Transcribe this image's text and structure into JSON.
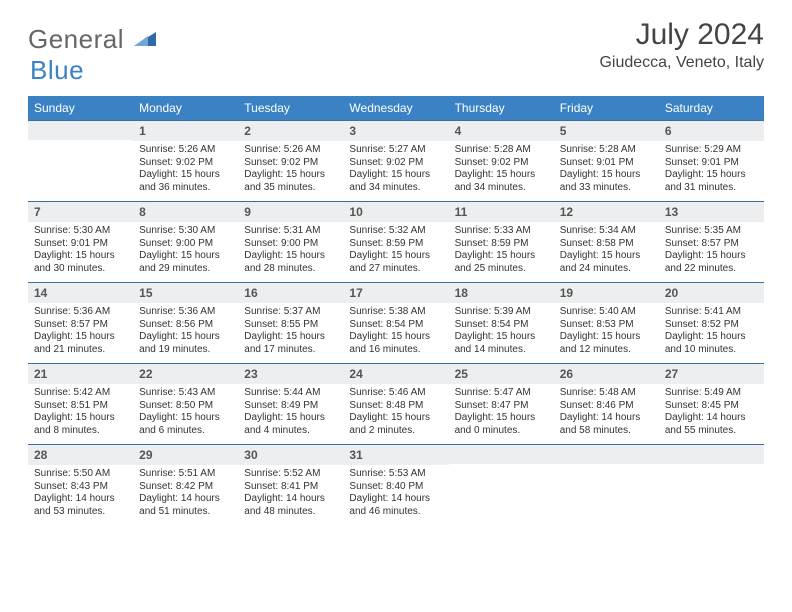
{
  "brand": {
    "general": "General",
    "blue": "Blue"
  },
  "title": "July 2024",
  "location": "Giudecca, Veneto, Italy",
  "colors": {
    "header_bg": "#3b82c4",
    "strip_bg": "#eceeef",
    "rule": "#3b6ea0"
  },
  "day_headers": [
    "Sunday",
    "Monday",
    "Tuesday",
    "Wednesday",
    "Thursday",
    "Friday",
    "Saturday"
  ],
  "weeks": [
    [
      null,
      {
        "n": "1",
        "sr": "5:26 AM",
        "ss": "9:02 PM",
        "dl": "15 hours and 36 minutes."
      },
      {
        "n": "2",
        "sr": "5:26 AM",
        "ss": "9:02 PM",
        "dl": "15 hours and 35 minutes."
      },
      {
        "n": "3",
        "sr": "5:27 AM",
        "ss": "9:02 PM",
        "dl": "15 hours and 34 minutes."
      },
      {
        "n": "4",
        "sr": "5:28 AM",
        "ss": "9:02 PM",
        "dl": "15 hours and 34 minutes."
      },
      {
        "n": "5",
        "sr": "5:28 AM",
        "ss": "9:01 PM",
        "dl": "15 hours and 33 minutes."
      },
      {
        "n": "6",
        "sr": "5:29 AM",
        "ss": "9:01 PM",
        "dl": "15 hours and 31 minutes."
      }
    ],
    [
      {
        "n": "7",
        "sr": "5:30 AM",
        "ss": "9:01 PM",
        "dl": "15 hours and 30 minutes."
      },
      {
        "n": "8",
        "sr": "5:30 AM",
        "ss": "9:00 PM",
        "dl": "15 hours and 29 minutes."
      },
      {
        "n": "9",
        "sr": "5:31 AM",
        "ss": "9:00 PM",
        "dl": "15 hours and 28 minutes."
      },
      {
        "n": "10",
        "sr": "5:32 AM",
        "ss": "8:59 PM",
        "dl": "15 hours and 27 minutes."
      },
      {
        "n": "11",
        "sr": "5:33 AM",
        "ss": "8:59 PM",
        "dl": "15 hours and 25 minutes."
      },
      {
        "n": "12",
        "sr": "5:34 AM",
        "ss": "8:58 PM",
        "dl": "15 hours and 24 minutes."
      },
      {
        "n": "13",
        "sr": "5:35 AM",
        "ss": "8:57 PM",
        "dl": "15 hours and 22 minutes."
      }
    ],
    [
      {
        "n": "14",
        "sr": "5:36 AM",
        "ss": "8:57 PM",
        "dl": "15 hours and 21 minutes."
      },
      {
        "n": "15",
        "sr": "5:36 AM",
        "ss": "8:56 PM",
        "dl": "15 hours and 19 minutes."
      },
      {
        "n": "16",
        "sr": "5:37 AM",
        "ss": "8:55 PM",
        "dl": "15 hours and 17 minutes."
      },
      {
        "n": "17",
        "sr": "5:38 AM",
        "ss": "8:54 PM",
        "dl": "15 hours and 16 minutes."
      },
      {
        "n": "18",
        "sr": "5:39 AM",
        "ss": "8:54 PM",
        "dl": "15 hours and 14 minutes."
      },
      {
        "n": "19",
        "sr": "5:40 AM",
        "ss": "8:53 PM",
        "dl": "15 hours and 12 minutes."
      },
      {
        "n": "20",
        "sr": "5:41 AM",
        "ss": "8:52 PM",
        "dl": "15 hours and 10 minutes."
      }
    ],
    [
      {
        "n": "21",
        "sr": "5:42 AM",
        "ss": "8:51 PM",
        "dl": "15 hours and 8 minutes."
      },
      {
        "n": "22",
        "sr": "5:43 AM",
        "ss": "8:50 PM",
        "dl": "15 hours and 6 minutes."
      },
      {
        "n": "23",
        "sr": "5:44 AM",
        "ss": "8:49 PM",
        "dl": "15 hours and 4 minutes."
      },
      {
        "n": "24",
        "sr": "5:46 AM",
        "ss": "8:48 PM",
        "dl": "15 hours and 2 minutes."
      },
      {
        "n": "25",
        "sr": "5:47 AM",
        "ss": "8:47 PM",
        "dl": "15 hours and 0 minutes."
      },
      {
        "n": "26",
        "sr": "5:48 AM",
        "ss": "8:46 PM",
        "dl": "14 hours and 58 minutes."
      },
      {
        "n": "27",
        "sr": "5:49 AM",
        "ss": "8:45 PM",
        "dl": "14 hours and 55 minutes."
      }
    ],
    [
      {
        "n": "28",
        "sr": "5:50 AM",
        "ss": "8:43 PM",
        "dl": "14 hours and 53 minutes."
      },
      {
        "n": "29",
        "sr": "5:51 AM",
        "ss": "8:42 PM",
        "dl": "14 hours and 51 minutes."
      },
      {
        "n": "30",
        "sr": "5:52 AM",
        "ss": "8:41 PM",
        "dl": "14 hours and 48 minutes."
      },
      {
        "n": "31",
        "sr": "5:53 AM",
        "ss": "8:40 PM",
        "dl": "14 hours and 46 minutes."
      },
      null,
      null,
      null
    ]
  ],
  "labels": {
    "sunrise": "Sunrise: ",
    "sunset": "Sunset: ",
    "daylight": "Daylight: "
  }
}
